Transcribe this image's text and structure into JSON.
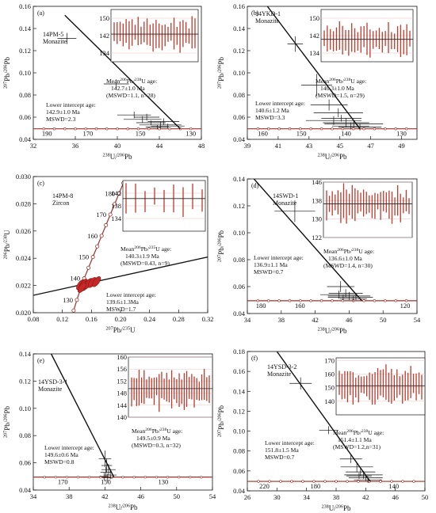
{
  "figure": {
    "colors": {
      "concordia": "#a0302a",
      "ellipse": "#c62828",
      "inset_bar": "#c0392b",
      "axis": "#111111",
      "marker_fill": "#ffffff"
    }
  },
  "chart_data": [
    {
      "panel": "(a)",
      "type": "scatter",
      "title": "14PM-5",
      "subtitle": "Monazite",
      "xlabel": "238U/206Pb",
      "ylabel": "207Pb/206Pb",
      "xlim": [
        32,
        48
      ],
      "ylim": [
        0.04,
        0.16
      ],
      "xticks": [
        32,
        36,
        40,
        44,
        48
      ],
      "yticks": [
        0.04,
        0.06,
        0.08,
        0.1,
        0.12,
        0.14,
        0.16
      ],
      "discordia": {
        "x": [
          35,
          46
        ],
        "y": [
          0.152,
          0.0495
        ]
      },
      "concordia_ages": [
        "190",
        "170",
        "150",
        "130"
      ],
      "concordia_age_x": [
        33.3,
        37.2,
        42.2,
        47.0
      ],
      "points": [
        {
          "x": 35.2,
          "y": 0.131,
          "ex": 0.9,
          "ey": 0.005
        },
        {
          "x": 39.9,
          "y": 0.09,
          "ex": 1.2,
          "ey": 0.004
        },
        {
          "x": 41.6,
          "y": 0.062,
          "ex": 1.6,
          "ey": 0.003
        },
        {
          "x": 42.4,
          "y": 0.058,
          "ex": 1.8,
          "ey": 0.003
        },
        {
          "x": 43.2,
          "y": 0.055,
          "ex": 1.4,
          "ey": 0.002
        },
        {
          "x": 44.1,
          "y": 0.053,
          "ex": 2.0,
          "ey": 0.003
        },
        {
          "x": 43.8,
          "y": 0.051,
          "ex": 1.1,
          "ey": 0.002
        },
        {
          "x": 44.8,
          "y": 0.052,
          "ex": 1.6,
          "ey": 0.002
        },
        {
          "x": 42.8,
          "y": 0.06,
          "ex": 1.2,
          "ey": 0.003
        },
        {
          "x": 44.4,
          "y": 0.056,
          "ex": 1.5,
          "ey": 0.003
        }
      ],
      "inset": {
        "ylim": [
          130,
          154
        ],
        "yticks": [
          "150",
          "142",
          "134"
        ],
        "mean": 142.7,
        "n": 28
      },
      "annotations": {
        "mean_label": "Mean206Pb/238U age:",
        "mean_value": "142.7±1.0 Ma",
        "mean_stats": "(MSWD=1.1, n=28)",
        "lower_label": "Lower intercept age:",
        "lower_value": "142.9±1.0 Ma",
        "lower_stats": "MSWD=2.3"
      }
    },
    {
      "panel": "(b)",
      "type": "scatter",
      "title": "14YKD-1",
      "subtitle": "Monazite",
      "xlabel": "238U/206Pb",
      "ylabel": "207Pb/206Pb",
      "xlim": [
        39,
        50
      ],
      "ylim": [
        0.04,
        0.16
      ],
      "xticks": [
        39,
        41,
        43,
        45,
        47,
        49
      ],
      "yticks": [
        0.04,
        0.06,
        0.08,
        0.1,
        0.12,
        0.14,
        0.16
      ],
      "discordia": {
        "x": [
          40.3,
          46.3
        ],
        "y": [
          0.16,
          0.0495
        ]
      },
      "concordia_ages": [
        "160",
        "150",
        "140",
        "130"
      ],
      "concordia_age_x": [
        40.0,
        42.5,
        45.4,
        49.0
      ],
      "points": [
        {
          "x": 42.1,
          "y": 0.126,
          "ex": 0.5,
          "ey": 0.007
        },
        {
          "x": 43.5,
          "y": 0.089,
          "ex": 1.0,
          "ey": 0.01
        },
        {
          "x": 44.3,
          "y": 0.071,
          "ex": 1.2,
          "ey": 0.005
        },
        {
          "x": 44.9,
          "y": 0.064,
          "ex": 1.6,
          "ey": 0.004
        },
        {
          "x": 45.1,
          "y": 0.059,
          "ex": 1.3,
          "ey": 0.003
        },
        {
          "x": 45.4,
          "y": 0.055,
          "ex": 1.5,
          "ey": 0.004
        },
        {
          "x": 45.7,
          "y": 0.052,
          "ex": 1.2,
          "ey": 0.003
        },
        {
          "x": 44.6,
          "y": 0.057,
          "ex": 1.8,
          "ey": 0.004
        },
        {
          "x": 45.9,
          "y": 0.054,
          "ex": 1.9,
          "ey": 0.003
        },
        {
          "x": 46.3,
          "y": 0.051,
          "ex": 1.4,
          "ey": 0.003
        }
      ],
      "inset": {
        "ylim": [
          130,
          154
        ],
        "yticks": [
          "150",
          "142",
          "134"
        ],
        "mean": 140.3,
        "n": 29
      },
      "annotations": {
        "mean_label": "Mean206Pb/238U age:",
        "mean_value": "140.3±1.0 Ma",
        "mean_stats": "(MSWD=1.5, n=29)",
        "lower_label": "Lower intercept age:",
        "lower_value": "140.6±1.2 Ma",
        "lower_stats": "MSWD=3.3"
      }
    },
    {
      "panel": "(c)",
      "type": "scatter",
      "title": "14PM-8",
      "subtitle": "Zircon",
      "xlabel": "207Pb/235U",
      "ylabel": "206Pb/238U",
      "xlim": [
        0.08,
        0.32
      ],
      "ylim": [
        0.02,
        0.03
      ],
      "xticks": [
        0.08,
        0.12,
        0.16,
        0.2,
        0.24,
        0.28,
        0.32
      ],
      "yticks": [
        0.02,
        0.022,
        0.024,
        0.026,
        0.028,
        0.03
      ],
      "discordia": {
        "x": [
          0.08,
          0.32
        ],
        "y": [
          0.02128,
          0.02409
        ]
      },
      "concordia_ages": [
        "180",
        "170",
        "160",
        "150",
        "140",
        "130"
      ],
      "concordia_markers": [
        {
          "x": 0.1355,
          "y": 0.02016
        },
        {
          "x": 0.14,
          "y": 0.02094
        },
        {
          "x": 0.145,
          "y": 0.02173
        },
        {
          "x": 0.15,
          "y": 0.02252
        },
        {
          "x": 0.156,
          "y": 0.0233
        },
        {
          "x": 0.162,
          "y": 0.02409
        },
        {
          "x": 0.168,
          "y": 0.02487
        },
        {
          "x": 0.174,
          "y": 0.02565
        },
        {
          "x": 0.18,
          "y": 0.02643
        },
        {
          "x": 0.186,
          "y": 0.02721
        },
        {
          "x": 0.192,
          "y": 0.02798
        },
        {
          "x": 0.198,
          "y": 0.02876
        },
        {
          "x": 0.204,
          "y": 0.02953
        }
      ],
      "ellipses": [
        {
          "x": 0.145,
          "y": 0.02205
        },
        {
          "x": 0.149,
          "y": 0.0221
        },
        {
          "x": 0.152,
          "y": 0.022
        },
        {
          "x": 0.156,
          "y": 0.02215
        },
        {
          "x": 0.161,
          "y": 0.02222
        },
        {
          "x": 0.167,
          "y": 0.02228
        },
        {
          "x": 0.147,
          "y": 0.02185
        }
      ],
      "inset": {
        "ylim": [
          130,
          146
        ],
        "yticks": [
          "142",
          "138",
          "134"
        ],
        "mean": 140.3,
        "n": 9
      },
      "annotations": {
        "mean_label": "Mean206Pb/235U age:",
        "mean_value": "140.3±1.9 Ma",
        "mean_stats": "(MSWD=0.43, n=9)",
        "lower_label": "Lower intercept age:",
        "lower_value": "139.6±1.3Ma",
        "lower_stats": "MSWD=1.7"
      }
    },
    {
      "panel": "(d)",
      "type": "scatter",
      "title": "14SWD-1",
      "subtitle": "Monazite",
      "xlabel": "238U/206Pb",
      "ylabel": "207Pb/206Pb",
      "xlim": [
        34,
        54
      ],
      "ylim": [
        0.04,
        0.14
      ],
      "xticks": [
        34,
        38,
        42,
        46,
        50,
        54
      ],
      "yticks": [
        0.04,
        0.06,
        0.08,
        0.1,
        0.12,
        0.14
      ],
      "discordia": {
        "x": [
          34.5,
          47.5
        ],
        "y": [
          0.142,
          0.0495
        ]
      },
      "concordia_ages": [
        "180",
        "160",
        "120"
      ],
      "concordia_age_x": [
        35.6,
        40.2,
        52.6
      ],
      "points": [
        {
          "x": 39.6,
          "y": 0.116,
          "ex": 2.4,
          "ey": 0.008
        },
        {
          "x": 45.0,
          "y": 0.06,
          "ex": 1.6,
          "ey": 0.004
        },
        {
          "x": 45.6,
          "y": 0.055,
          "ex": 2.0,
          "ey": 0.003
        },
        {
          "x": 46.0,
          "y": 0.053,
          "ex": 2.5,
          "ey": 0.003
        },
        {
          "x": 45.3,
          "y": 0.052,
          "ex": 1.8,
          "ey": 0.002
        },
        {
          "x": 46.5,
          "y": 0.051,
          "ex": 1.6,
          "ey": 0.002
        },
        {
          "x": 44.8,
          "y": 0.054,
          "ex": 2.2,
          "ey": 0.003
        },
        {
          "x": 46.8,
          "y": 0.052,
          "ex": 2.0,
          "ey": 0.002
        }
      ],
      "inset": {
        "ylim": [
          122,
          146
        ],
        "yticks": [
          "146",
          "138",
          "130",
          "122"
        ],
        "mean": 136.6,
        "n": 30
      },
      "annotations": {
        "mean_label": "Mean206Pb/238U age:",
        "mean_value": "136.6±1.0 Ma",
        "mean_stats": "(MSWD=1.4, n=30)",
        "lower_label": "Lower intercept age:",
        "lower_value": "136.9±1.1 Ma",
        "lower_stats": "MSWD=0.7"
      }
    },
    {
      "panel": "(e)",
      "type": "scatter",
      "title": "14YSD-3-1",
      "subtitle": "Monazite",
      "xlabel": "238U/206Pb",
      "ylabel": "207Pb/206Pb",
      "xlim": [
        34,
        54
      ],
      "ylim": [
        0.04,
        0.14
      ],
      "xticks": [
        34,
        38,
        42,
        46,
        50,
        54
      ],
      "yticks": [
        0.04,
        0.06,
        0.08,
        0.1,
        0.12,
        0.14
      ],
      "discordia": {
        "x": [
          36.0,
          43.0
        ],
        "y": [
          0.14,
          0.0495
        ]
      },
      "concordia_ages": [
        "170",
        "150",
        "130"
      ],
      "concordia_age_x": [
        37.3,
        42.1,
        48.5
      ],
      "points": [
        {
          "x": 42.0,
          "y": 0.063,
          "ex": 0.7,
          "ey": 0.006
        },
        {
          "x": 42.2,
          "y": 0.058,
          "ex": 0.6,
          "ey": 0.005
        },
        {
          "x": 42.4,
          "y": 0.055,
          "ex": 0.8,
          "ey": 0.004
        },
        {
          "x": 42.1,
          "y": 0.053,
          "ex": 0.6,
          "ey": 0.004
        },
        {
          "x": 42.6,
          "y": 0.051,
          "ex": 0.7,
          "ey": 0.003
        },
        {
          "x": 41.9,
          "y": 0.05,
          "ex": 0.5,
          "ey": 0.003
        },
        {
          "x": 42.3,
          "y": 0.049,
          "ex": 0.6,
          "ey": 0.003
        }
      ],
      "inset": {
        "ylim": [
          140,
          160
        ],
        "yticks": [
          "160",
          "156",
          "152",
          "148",
          "144",
          "140"
        ],
        "mean": 149.5,
        "n": 32
      },
      "annotations": {
        "mean_label": "Mean206Pb/238U age:",
        "mean_value": "149.5±0.9 Ma",
        "mean_stats": "(MSWD=0.3, n=32)",
        "lower_label": "Lower intercept age:",
        "lower_value": "149.6±0.6 Ma",
        "lower_stats": "MSWD=0.8"
      }
    },
    {
      "panel": "(f)",
      "type": "scatter",
      "title": "14YSD-3-2",
      "subtitle": "Monazite",
      "xlabel": "238U/206Pb",
      "ylabel": "207Pb/206Pb",
      "xlim": [
        26,
        50
      ],
      "ylim": [
        0.04,
        0.18
      ],
      "xticks": [
        26,
        30,
        34,
        38,
        42,
        46,
        50
      ],
      "yticks": [
        0.04,
        0.06,
        0.08,
        0.1,
        0.12,
        0.14,
        0.16,
        0.18
      ],
      "discordia": {
        "x": [
          30.0,
          42.6
        ],
        "y": [
          0.18,
          0.0495
        ]
      },
      "concordia_ages": [
        "220",
        "180",
        "140"
      ],
      "concordia_age_x": [
        28.3,
        35.2,
        45.8
      ],
      "points": [
        {
          "x": 33.2,
          "y": 0.148,
          "ex": 1.5,
          "ey": 0.006
        },
        {
          "x": 37.0,
          "y": 0.101,
          "ex": 1.3,
          "ey": 0.004
        },
        {
          "x": 40.0,
          "y": 0.072,
          "ex": 1.5,
          "ey": 0.004
        },
        {
          "x": 40.8,
          "y": 0.064,
          "ex": 2.2,
          "ey": 0.005
        },
        {
          "x": 41.3,
          "y": 0.059,
          "ex": 2.0,
          "ey": 0.004
        },
        {
          "x": 41.7,
          "y": 0.056,
          "ex": 2.6,
          "ey": 0.004
        },
        {
          "x": 42.0,
          "y": 0.053,
          "ex": 2.3,
          "ey": 0.003
        },
        {
          "x": 41.1,
          "y": 0.055,
          "ex": 1.7,
          "ey": 0.003
        },
        {
          "x": 42.3,
          "y": 0.051,
          "ex": 1.9,
          "ey": 0.003
        }
      ],
      "inset": {
        "ylim": [
          130,
          172
        ],
        "yticks": [
          "170",
          "160",
          "150",
          "140"
        ],
        "mean": 151.4,
        "n": 31
      },
      "annotations": {
        "mean_label": "Mean206Pb/238U age:",
        "mean_value": "151.4±1.1 Ma",
        "mean_stats": "(MSWD=1.2,n=31)",
        "lower_label": "Lower intercept age:",
        "lower_value": "151.8±1.5 Ma",
        "lower_stats": "MSWD=0.7"
      }
    }
  ]
}
